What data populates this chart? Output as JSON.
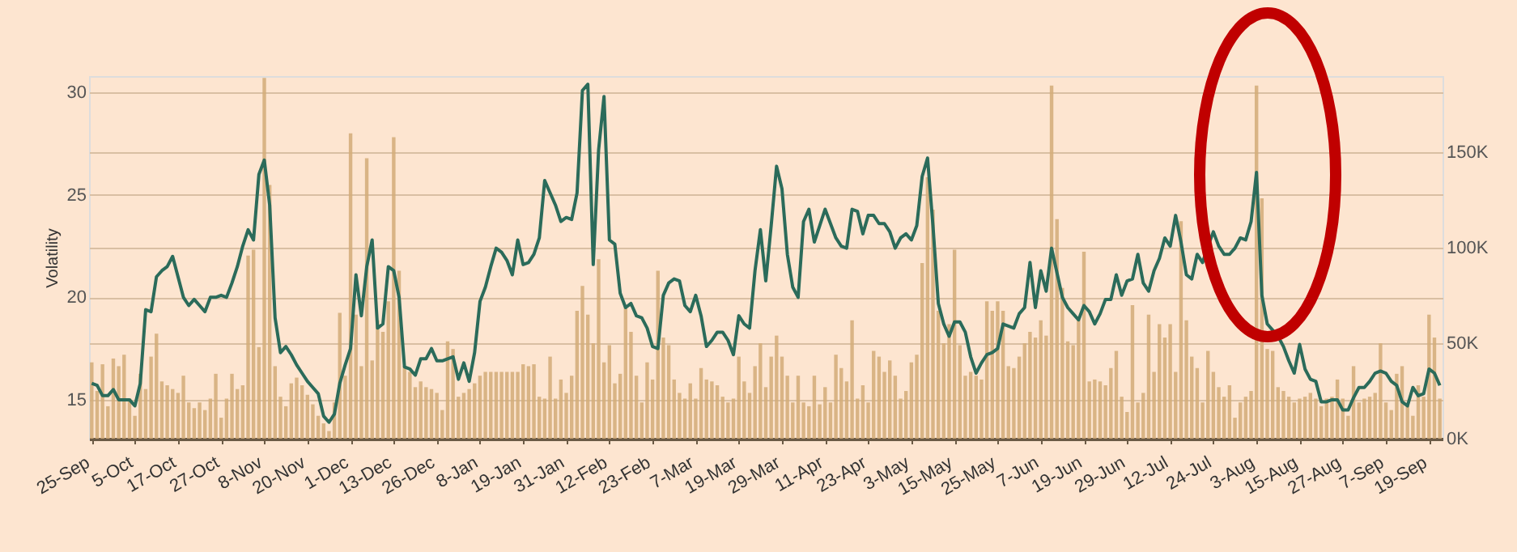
{
  "chart_data": {
    "type": "bar",
    "ylabel": "Volatility",
    "categories": [
      "25-Sep",
      null,
      null,
      null,
      null,
      null,
      null,
      null,
      "5-Oct",
      null,
      null,
      null,
      null,
      null,
      null,
      null,
      "17-Oct",
      null,
      null,
      null,
      null,
      null,
      null,
      null,
      "27-Oct",
      null,
      null,
      null,
      null,
      null,
      null,
      null,
      "8-Nov",
      null,
      null,
      null,
      null,
      null,
      null,
      null,
      "20-Nov",
      null,
      null,
      null,
      null,
      null,
      null,
      null,
      "1-Dec",
      null,
      null,
      null,
      null,
      null,
      null,
      null,
      "13-Dec",
      null,
      null,
      null,
      null,
      null,
      null,
      null,
      "26-Dec",
      null,
      null,
      null,
      null,
      null,
      null,
      null,
      "8-Jan",
      null,
      null,
      null,
      null,
      null,
      null,
      null,
      "19-Jan",
      null,
      null,
      null,
      null,
      null,
      null,
      null,
      "31-Jan",
      null,
      null,
      null,
      null,
      null,
      null,
      null,
      "12-Feb",
      null,
      null,
      null,
      null,
      null,
      null,
      null,
      "23-Feb",
      null,
      null,
      null,
      null,
      null,
      null,
      null,
      "7-Mar",
      null,
      null,
      null,
      null,
      null,
      null,
      null,
      "19-Mar",
      null,
      null,
      null,
      null,
      null,
      null,
      null,
      "29-Mar",
      null,
      null,
      null,
      null,
      null,
      null,
      null,
      "11-Apr",
      null,
      null,
      null,
      null,
      null,
      null,
      null,
      "23-Apr",
      null,
      null,
      null,
      null,
      null,
      null,
      null,
      "3-May",
      null,
      null,
      null,
      null,
      null,
      null,
      null,
      "15-May",
      null,
      null,
      null,
      null,
      null,
      null,
      null,
      "25-May",
      null,
      null,
      null,
      null,
      null,
      null,
      null,
      "7-Jun",
      null,
      null,
      null,
      null,
      null,
      null,
      null,
      "19-Jun",
      null,
      null,
      null,
      null,
      null,
      null,
      null,
      "29-Jun",
      null,
      null,
      null,
      null,
      null,
      null,
      null,
      "12-Jul",
      null,
      null,
      null,
      null,
      null,
      null,
      null,
      "24-Jul",
      null,
      null,
      null,
      null,
      null,
      null,
      null,
      "3-Aug",
      null,
      null,
      null,
      null,
      null,
      null,
      null,
      "15-Aug",
      null,
      null,
      null,
      null,
      null,
      null,
      null,
      "27-Aug",
      null,
      null,
      null,
      null,
      null,
      null,
      null,
      "7-Sep",
      null,
      null,
      null,
      null,
      null,
      null,
      null,
      "19-Sep",
      null,
      null
    ],
    "series": [
      {
        "axis": "y2",
        "color": "#d2ab78",
        "values": [
          40,
          25,
          39,
          17,
          42,
          38,
          44,
          21,
          12,
          34,
          26,
          43,
          55,
          30,
          28,
          26,
          24,
          33,
          19,
          16,
          19,
          15,
          21,
          34,
          11,
          21,
          34,
          26,
          28,
          96,
          99,
          48,
          189,
          133,
          38,
          22,
          17,
          29,
          32,
          28,
          23,
          18,
          12,
          8,
          4,
          19,
          66,
          33,
          160,
          65,
          38,
          147,
          41,
          62,
          56,
          72,
          158,
          88,
          38,
          35,
          27,
          30,
          27,
          26,
          24,
          15,
          51,
          47,
          22,
          24,
          26,
          29,
          33,
          35,
          35,
          35,
          35,
          35,
          35,
          35,
          39,
          38,
          39,
          22,
          21,
          43,
          21,
          31,
          24,
          33,
          67,
          80,
          65,
          50,
          94,
          40,
          49,
          29,
          34,
          70,
          56,
          33,
          19,
          40,
          31,
          88,
          53,
          49,
          31,
          24,
          21,
          29,
          21,
          37,
          31,
          30,
          28,
          22,
          19,
          21,
          43,
          30,
          24,
          38,
          50,
          27,
          43,
          54,
          43,
          33,
          19,
          33,
          19,
          17,
          33,
          18,
          27,
          19,
          44,
          37,
          30,
          62,
          21,
          28,
          19,
          46,
          43,
          35,
          41,
          33,
          21,
          25,
          40,
          44,
          92,
          137,
          120,
          67,
          50,
          60,
          99,
          49,
          33,
          35,
          33,
          31,
          72,
          67,
          72,
          67,
          38,
          37,
          43,
          50,
          56,
          53,
          62,
          54,
          185,
          115,
          79,
          51,
          49,
          62,
          98,
          30,
          31,
          30,
          28,
          37,
          46,
          22,
          14,
          70,
          19,
          24,
          65,
          35,
          60,
          53,
          60,
          35,
          114,
          62,
          43,
          37,
          19,
          46,
          35,
          27,
          22,
          28,
          11,
          19,
          22,
          25,
          185,
          126,
          47,
          46,
          27,
          25,
          22,
          19,
          21,
          22,
          24,
          21,
          17,
          21,
          22,
          31,
          21,
          12,
          38,
          19,
          21,
          22,
          24,
          50,
          19,
          15,
          34,
          38,
          19,
          12,
          28,
          22,
          65,
          53,
          21
        ]
      },
      {
        "type": "line",
        "color": "#2b6b5a",
        "values": [
          15.8,
          15.7,
          15.2,
          15.2,
          15.5,
          15.0,
          15.0,
          15.0,
          14.7,
          15.8,
          19.4,
          19.3,
          21.0,
          21.3,
          21.5,
          22.0,
          21.0,
          20.0,
          19.6,
          19.9,
          19.6,
          19.3,
          20.0,
          20.0,
          20.1,
          20.0,
          20.7,
          21.5,
          22.5,
          23.3,
          22.8,
          26.0,
          26.7,
          24.5,
          19.0,
          17.3,
          17.6,
          17.2,
          16.7,
          16.3,
          15.9,
          15.6,
          15.3,
          14.2,
          13.9,
          14.3,
          15.8,
          16.7,
          17.5,
          21.1,
          19.1,
          21.5,
          22.8,
          18.5,
          18.7,
          21.5,
          21.3,
          20.0,
          16.6,
          16.5,
          16.2,
          17.0,
          17.0,
          17.5,
          16.9,
          16.9,
          17.0,
          17.1,
          16.0,
          16.8,
          15.9,
          17.3,
          19.8,
          20.5,
          21.5,
          22.4,
          22.2,
          21.8,
          21.1,
          22.8,
          21.6,
          21.7,
          22.1,
          22.9,
          25.7,
          25.1,
          24.5,
          23.7,
          23.9,
          23.8,
          25.1,
          30.1,
          30.4,
          21.6,
          27.2,
          29.8,
          22.8,
          22.6,
          20.2,
          19.5,
          19.7,
          19.1,
          19.0,
          18.5,
          17.6,
          17.5,
          20.1,
          20.7,
          20.9,
          20.8,
          19.6,
          19.3,
          20.1,
          19.1,
          17.6,
          17.9,
          18.3,
          18.3,
          17.9,
          17.2,
          19.1,
          18.7,
          18.5,
          21.3,
          23.3,
          20.8,
          23.5,
          26.4,
          25.3,
          22.1,
          20.5,
          20.0,
          23.7,
          24.3,
          22.7,
          23.5,
          24.3,
          23.6,
          22.9,
          22.5,
          22.4,
          24.3,
          24.2,
          23.1,
          24.0,
          24.0,
          23.6,
          23.6,
          23.2,
          22.4,
          22.9,
          23.1,
          22.8,
          23.5,
          25.9,
          26.8,
          23.5,
          19.7,
          18.7,
          18.1,
          18.8,
          18.8,
          18.3,
          17.1,
          16.3,
          16.8,
          17.2,
          17.3,
          17.5,
          18.7,
          18.6,
          18.5,
          19.2,
          19.5,
          21.7,
          19.5,
          21.3,
          20.3,
          22.4,
          21.2,
          20.0,
          19.5,
          19.2,
          18.9,
          19.6,
          19.3,
          18.7,
          19.2,
          19.9,
          19.9,
          21.1,
          20.1,
          20.8,
          20.9,
          22.1,
          20.7,
          20.3,
          21.3,
          21.9,
          22.9,
          22.5,
          24.0,
          22.7,
          21.1,
          20.9,
          22.1,
          21.7,
          22.5,
          23.2,
          22.5,
          22.1,
          22.1,
          22.4,
          22.9,
          22.8,
          23.7,
          26.1,
          20.1,
          18.7,
          18.4,
          18.1,
          17.6,
          16.9,
          16.3,
          17.7,
          16.5,
          16.0,
          15.9,
          14.9,
          14.9,
          15.0,
          15.0,
          14.5,
          14.5,
          15.1,
          15.6,
          15.6,
          15.9,
          16.3,
          16.4,
          16.3,
          15.9,
          15.7,
          14.9,
          14.7,
          15.6,
          15.2,
          15.3,
          16.5,
          16.3,
          15.7
        ]
      }
    ],
    "ylim": [
      13.1,
      30.8
    ],
    "yticks": [
      15,
      20,
      25,
      30
    ],
    "y2lim": [
      0,
      190
    ],
    "y2ticks": [
      {
        "value": 0,
        "label": "0K"
      },
      {
        "value": 50,
        "label": "50K"
      },
      {
        "value": 100,
        "label": "100K"
      },
      {
        "value": 150,
        "label": "150K"
      }
    ],
    "grid": "y",
    "marker": "none",
    "line_style": "solid"
  }
}
